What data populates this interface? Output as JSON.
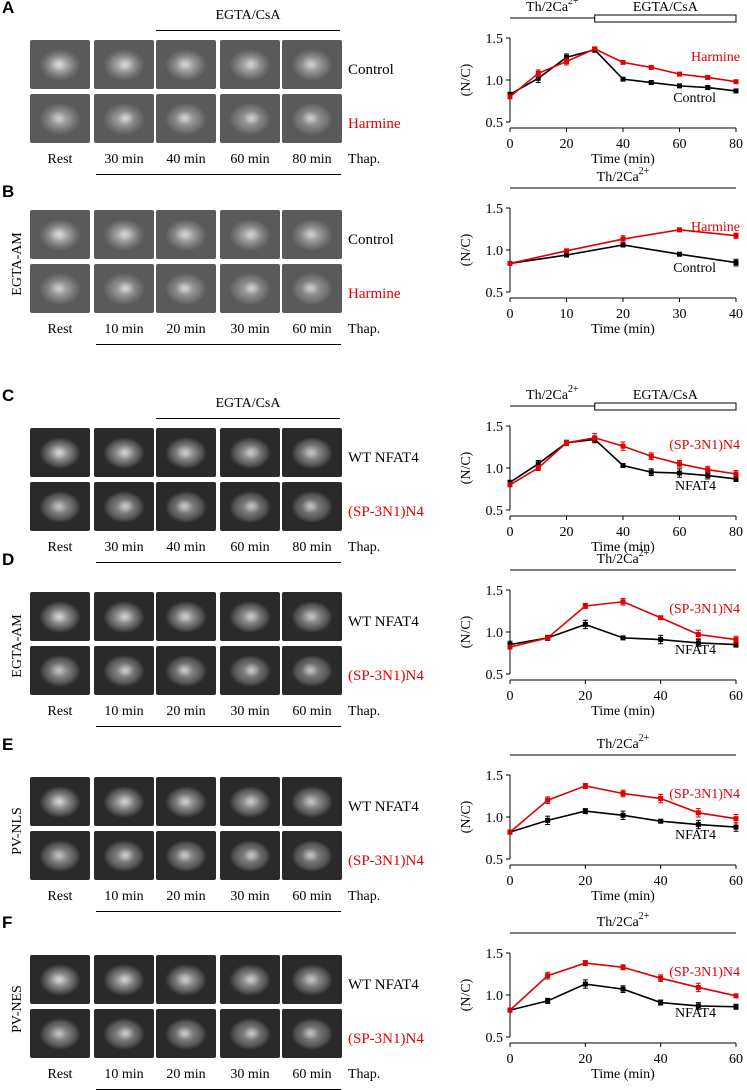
{
  "panels": [
    {
      "id": "A",
      "letter": "A",
      "top_label": "EGTA/CsA",
      "side_label": "",
      "rows": [
        {
          "label": "Control",
          "color": "#000000"
        },
        {
          "label": "Harmine",
          "color": "#e00000"
        }
      ],
      "times": [
        "Rest",
        "30 min",
        "40 min",
        "60 min",
        "80 min"
      ],
      "thap_label": "Thap.",
      "chart_data": {
        "type": "line",
        "bars": [
          {
            "label": "Th/2Ca",
            "sup": "2+",
            "from": 0,
            "to": 30,
            "filled": true
          },
          {
            "label": "EGTA/CsA",
            "from": 30,
            "to": 80,
            "filled": false
          }
        ],
        "xlabel": "Time (min)",
        "ylabel": "(N/C)",
        "xlim": [
          0,
          80
        ],
        "ylim": [
          0.5,
          1.5
        ],
        "xticks": [
          0,
          20,
          40,
          60,
          80
        ],
        "yticks": [
          0.5,
          1.0,
          1.5
        ],
        "series": [
          {
            "name": "Harmine",
            "color": "#e00000",
            "x": [
              0,
              10,
              20,
              30,
              40,
              50,
              60,
              70,
              80
            ],
            "y": [
              0.8,
              1.08,
              1.22,
              1.37,
              1.21,
              1.15,
              1.07,
              1.03,
              0.98
            ],
            "err": [
              0.02,
              0.04,
              0.04,
              0.02,
              0.02,
              0.02,
              0.02,
              0.02,
              0.02
            ]
          },
          {
            "name": "Control",
            "color": "#000000",
            "x": [
              0,
              10,
              20,
              30,
              40,
              50,
              60,
              70,
              80
            ],
            "y": [
              0.83,
              1.02,
              1.27,
              1.36,
              1.01,
              0.97,
              0.93,
              0.91,
              0.87
            ],
            "err": [
              0.02,
              0.05,
              0.04,
              0.03,
              0.01,
              0.02,
              0.02,
              0.02,
              0.02
            ]
          }
        ],
        "legend": [
          {
            "text": "Harmine",
            "color": "#e00000",
            "pos": "upper"
          },
          {
            "text": "Control",
            "color": "#000000",
            "pos": "lower"
          }
        ]
      }
    },
    {
      "id": "B",
      "letter": "B",
      "top_label": "",
      "side_label": "EGTA-AM",
      "rows": [
        {
          "label": "Control",
          "color": "#000000"
        },
        {
          "label": "Harmine",
          "color": "#e00000"
        }
      ],
      "times": [
        "Rest",
        "10 min",
        "20 min",
        "30 min",
        "60 min"
      ],
      "thap_label": "Thap.",
      "chart_data": {
        "type": "line",
        "bars": [
          {
            "label": "Th/2Ca",
            "sup": "2+",
            "from": 0,
            "to": 40,
            "filled": true
          }
        ],
        "xlabel": "Time (min)",
        "ylabel": "(N/C)",
        "xlim": [
          0,
          40
        ],
        "ylim": [
          0.5,
          1.5
        ],
        "xticks": [
          0,
          10,
          20,
          30,
          40
        ],
        "yticks": [
          0.5,
          1.0,
          1.5
        ],
        "series": [
          {
            "name": "Harmine",
            "color": "#e00000",
            "x": [
              0,
              10,
              20,
              30,
              40
            ],
            "y": [
              0.84,
              0.99,
              1.13,
              1.24,
              1.17
            ],
            "err": [
              0.02,
              0.02,
              0.04,
              0.02,
              0.03
            ]
          },
          {
            "name": "Control",
            "color": "#000000",
            "x": [
              0,
              10,
              20,
              30,
              40
            ],
            "y": [
              0.84,
              0.94,
              1.06,
              0.95,
              0.85
            ],
            "err": [
              0.02,
              0.02,
              0.02,
              0.02,
              0.04
            ]
          }
        ],
        "legend": [
          {
            "text": "Harmine",
            "color": "#e00000",
            "pos": "upper"
          },
          {
            "text": "Control",
            "color": "#000000",
            "pos": "lower"
          }
        ]
      }
    },
    {
      "id": "C",
      "letter": "C",
      "top_label": "EGTA/CsA",
      "side_label": "",
      "rows": [
        {
          "label": "WT NFAT4",
          "color": "#000000"
        },
        {
          "label": "(SP-3N1)N4",
          "color": "#e00000"
        }
      ],
      "times": [
        "Rest",
        "30 min",
        "40 min",
        "60 min",
        "80 min"
      ],
      "thap_label": "Thap.",
      "chart_data": {
        "type": "line",
        "bars": [
          {
            "label": "Th/2Ca",
            "sup": "2+",
            "from": 0,
            "to": 30,
            "filled": true
          },
          {
            "label": "EGTA/CsA",
            "from": 30,
            "to": 80,
            "filled": false
          }
        ],
        "xlabel": "Time (min)",
        "ylabel": "(N/C)",
        "xlim": [
          0,
          80
        ],
        "ylim": [
          0.5,
          1.5
        ],
        "xticks": [
          0,
          20,
          40,
          60,
          80
        ],
        "yticks": [
          0.5,
          1.0,
          1.5
        ],
        "series": [
          {
            "name": "(SP-3N1)N4",
            "color": "#e00000",
            "x": [
              0,
              10,
              20,
              30,
              40,
              50,
              60,
              70,
              80
            ],
            "y": [
              0.8,
              1.0,
              1.3,
              1.36,
              1.26,
              1.14,
              1.05,
              0.98,
              0.93
            ],
            "err": [
              0.02,
              0.03,
              0.03,
              0.05,
              0.05,
              0.04,
              0.04,
              0.04,
              0.04
            ]
          },
          {
            "name": "NFAT4",
            "color": "#000000",
            "x": [
              0,
              10,
              20,
              30,
              40,
              50,
              60,
              70,
              80
            ],
            "y": [
              0.83,
              1.05,
              1.3,
              1.34,
              1.03,
              0.95,
              0.94,
              0.91,
              0.87
            ],
            "err": [
              0.02,
              0.04,
              0.03,
              0.04,
              0.02,
              0.04,
              0.05,
              0.04,
              0.03
            ]
          }
        ],
        "legend": [
          {
            "text": "(SP-3N1)N4",
            "color": "#e00000",
            "pos": "upper"
          },
          {
            "text": "NFAT4",
            "color": "#000000",
            "pos": "lower"
          }
        ]
      }
    },
    {
      "id": "D",
      "letter": "D",
      "top_label": "",
      "side_label": "EGTA-AM",
      "rows": [
        {
          "label": "WT NFAT4",
          "color": "#000000"
        },
        {
          "label": "(SP-3N1)N4",
          "color": "#e00000"
        }
      ],
      "times": [
        "Rest",
        "10 min",
        "20 min",
        "30 min",
        "60 min"
      ],
      "thap_label": "Thap.",
      "chart_data": {
        "type": "line",
        "bars": [
          {
            "label": "Th/2Ca",
            "sup": "2+",
            "from": 0,
            "to": 60,
            "filled": true
          }
        ],
        "xlabel": "Time (min)",
        "ylabel": "(N/C)",
        "xlim": [
          0,
          60
        ],
        "ylim": [
          0.5,
          1.5
        ],
        "xticks": [
          0,
          20,
          40,
          60
        ],
        "yticks": [
          0.5,
          1.0,
          1.5
        ],
        "series": [
          {
            "name": "(SP-3N1)N4",
            "color": "#e00000",
            "x": [
              0,
              10,
              20,
              30,
              40,
              50,
              60
            ],
            "y": [
              0.82,
              0.93,
              1.31,
              1.36,
              1.17,
              0.97,
              0.91
            ],
            "err": [
              0.02,
              0.02,
              0.03,
              0.04,
              0.02,
              0.05,
              0.04
            ]
          },
          {
            "name": "NFAT4",
            "color": "#000000",
            "x": [
              0,
              10,
              20,
              30,
              40,
              50,
              60
            ],
            "y": [
              0.85,
              0.93,
              1.09,
              0.93,
              0.91,
              0.87,
              0.85
            ],
            "err": [
              0.04,
              0.03,
              0.05,
              0.02,
              0.05,
              0.04,
              0.03
            ]
          }
        ],
        "legend": [
          {
            "text": "(SP-3N1)N4",
            "color": "#e00000",
            "pos": "upper"
          },
          {
            "text": "NFAT4",
            "color": "#000000",
            "pos": "lower"
          }
        ]
      }
    },
    {
      "id": "E",
      "letter": "E",
      "top_label": "",
      "side_label": "PV-NLS",
      "rows": [
        {
          "label": "WT NFAT4",
          "color": "#000000"
        },
        {
          "label": "(SP-3N1)N4",
          "color": "#e00000"
        }
      ],
      "times": [
        "Rest",
        "10 min",
        "20 min",
        "30 min",
        "60 min"
      ],
      "thap_label": "Thap.",
      "chart_data": {
        "type": "line",
        "bars": [
          {
            "label": "Th/2Ca",
            "sup": "2+",
            "from": 0,
            "to": 60,
            "filled": true
          }
        ],
        "xlabel": "Time (min)",
        "ylabel": "(N/C)",
        "xlim": [
          0,
          60
        ],
        "ylim": [
          0.5,
          1.5
        ],
        "xticks": [
          0,
          20,
          40,
          60
        ],
        "yticks": [
          0.5,
          1.0,
          1.5
        ],
        "series": [
          {
            "name": "(SP-3N1)N4",
            "color": "#e00000",
            "x": [
              0,
              10,
              20,
              30,
              40,
              50,
              60
            ],
            "y": [
              0.82,
              1.2,
              1.37,
              1.28,
              1.22,
              1.05,
              0.98
            ],
            "err": [
              0.02,
              0.04,
              0.03,
              0.04,
              0.05,
              0.05,
              0.05
            ]
          },
          {
            "name": "NFAT4",
            "color": "#000000",
            "x": [
              0,
              10,
              20,
              30,
              40,
              50,
              60
            ],
            "y": [
              0.82,
              0.96,
              1.07,
              1.02,
              0.95,
              0.91,
              0.88
            ],
            "err": [
              0.02,
              0.05,
              0.03,
              0.05,
              0.02,
              0.05,
              0.05
            ]
          }
        ],
        "legend": [
          {
            "text": "(SP-3N1)N4",
            "color": "#e00000",
            "pos": "upper"
          },
          {
            "text": "NFAT4",
            "color": "#000000",
            "pos": "lower"
          }
        ]
      }
    },
    {
      "id": "F",
      "letter": "F",
      "top_label": "",
      "side_label": "PV-NES",
      "rows": [
        {
          "label": "WT NFAT4",
          "color": "#000000"
        },
        {
          "label": "(SP-3N1)N4",
          "color": "#e00000"
        }
      ],
      "times": [
        "Rest",
        "10 min",
        "20 min",
        "30 min",
        "60 min"
      ],
      "thap_label": "Thap.",
      "chart_data": {
        "type": "line",
        "bars": [
          {
            "label": "Th/2Ca",
            "sup": "2+",
            "from": 0,
            "to": 60,
            "filled": true
          }
        ],
        "xlabel": "Time (min)",
        "ylabel": "(N/C)",
        "xlim": [
          0,
          60
        ],
        "ylim": [
          0.5,
          1.5
        ],
        "xticks": [
          0,
          20,
          40,
          60
        ],
        "yticks": [
          0.5,
          1.0,
          1.5
        ],
        "series": [
          {
            "name": "(SP-3N1)N4",
            "color": "#e00000",
            "x": [
              0,
              10,
              20,
              30,
              40,
              50,
              60
            ],
            "y": [
              0.82,
              1.23,
              1.38,
              1.33,
              1.2,
              1.09,
              0.99
            ],
            "err": [
              0.02,
              0.04,
              0.03,
              0.03,
              0.04,
              0.05,
              0.02
            ]
          },
          {
            "name": "NFAT4",
            "color": "#000000",
            "x": [
              0,
              10,
              20,
              30,
              40,
              50,
              60
            ],
            "y": [
              0.82,
              0.93,
              1.13,
              1.07,
              0.91,
              0.87,
              0.86
            ],
            "err": [
              0.02,
              0.03,
              0.05,
              0.04,
              0.03,
              0.04,
              0.03
            ]
          }
        ],
        "legend": [
          {
            "text": "(SP-3N1)N4",
            "color": "#e00000",
            "pos": "upper"
          },
          {
            "text": "NFAT4",
            "color": "#000000",
            "pos": "lower"
          }
        ]
      }
    }
  ]
}
